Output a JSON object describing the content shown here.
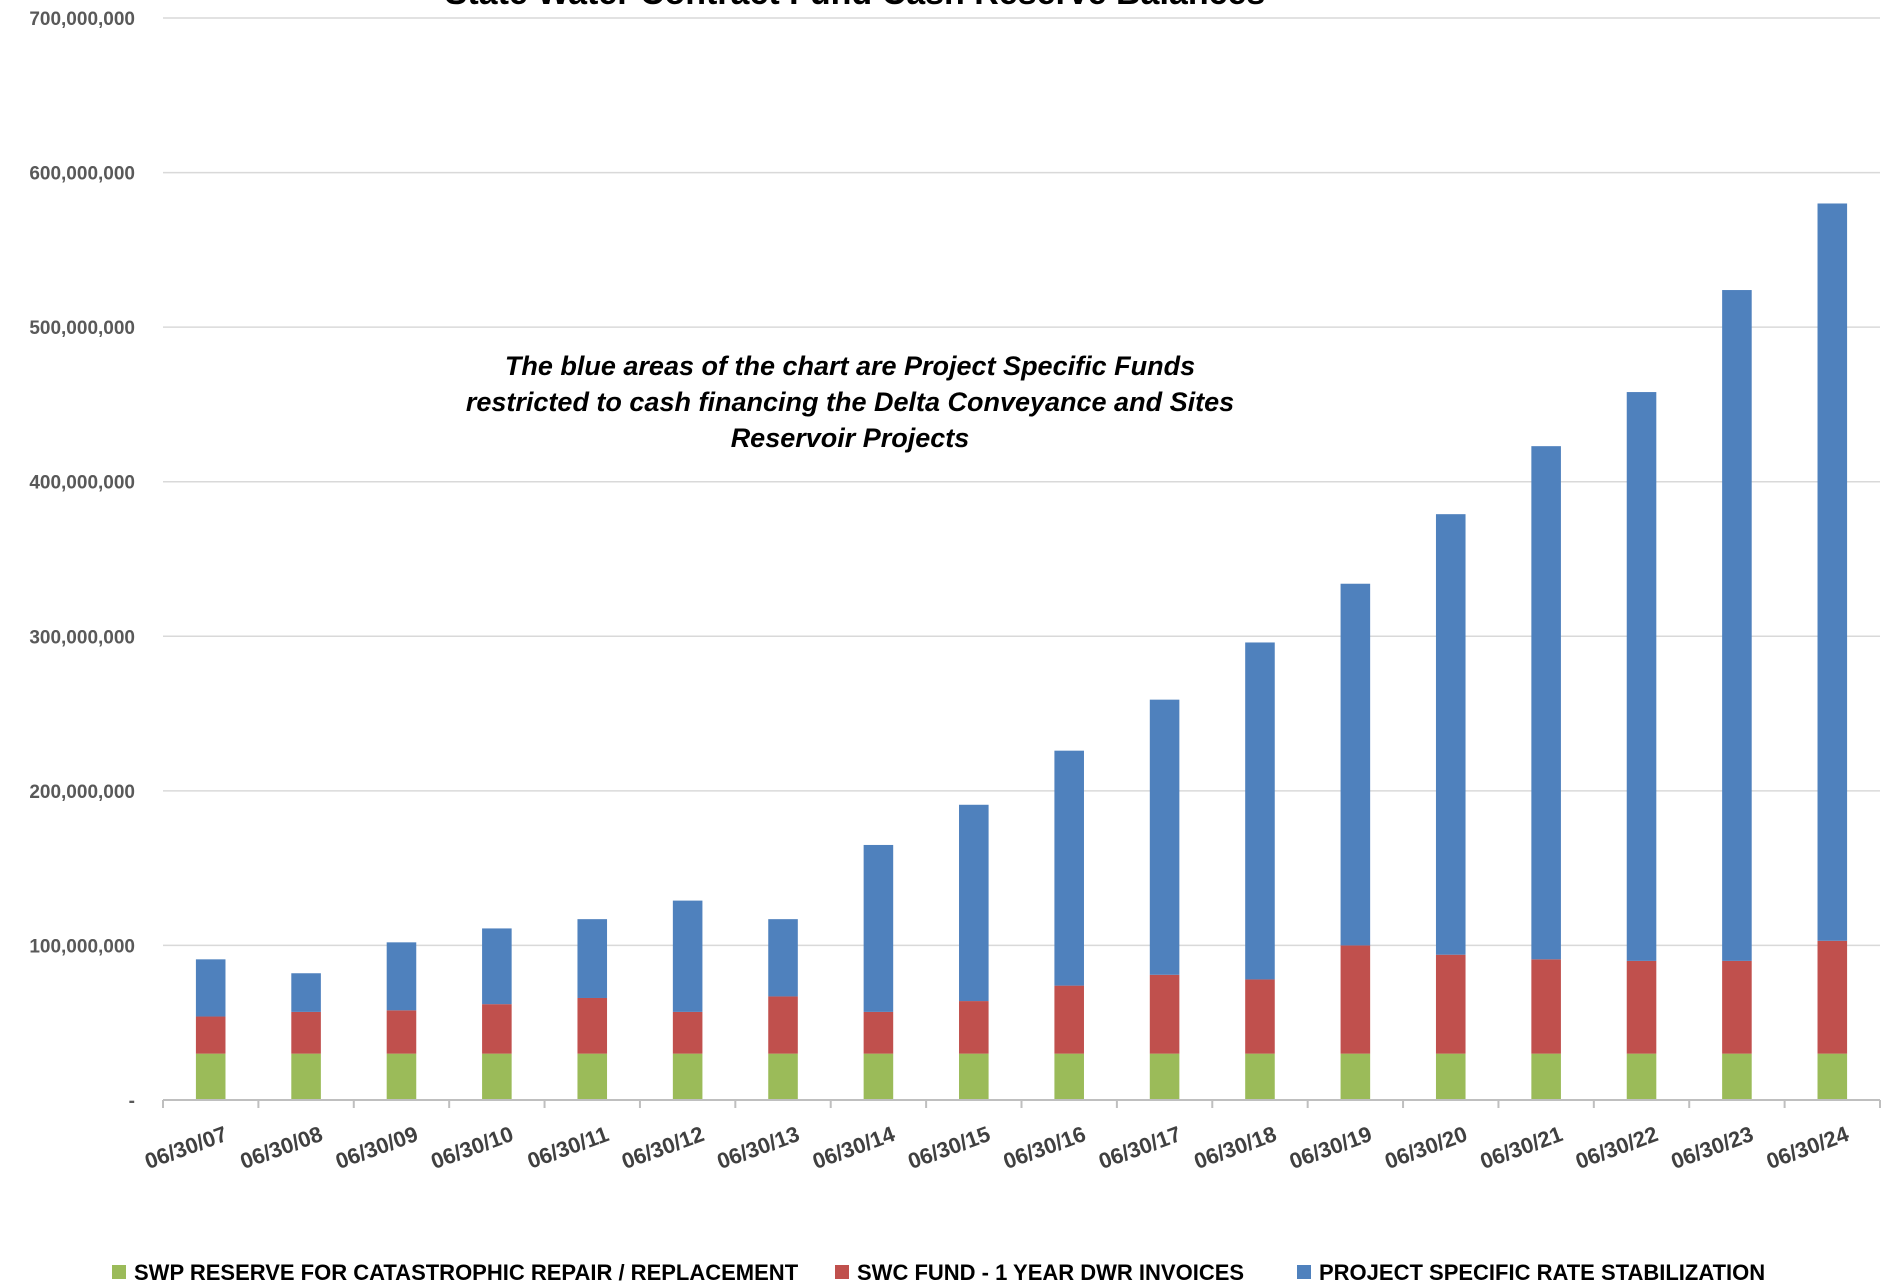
{
  "chart_data": {
    "type": "bar",
    "stacked": true,
    "title": "State Water Contract Fund Cash Reserve Balances",
    "annotation": [
      "The blue areas of the chart are Project Specific Funds",
      "restricted to cash financing the Delta Conveyance and Sites",
      "Reservoir Projects"
    ],
    "ylim": [
      0,
      700000000
    ],
    "yticks": [
      0,
      100000000,
      200000000,
      300000000,
      400000000,
      500000000,
      600000000,
      700000000
    ],
    "ytick_labels": [
      "-",
      "100,000,000",
      "200,000,000",
      "300,000,000",
      "400,000,000",
      "500,000,000",
      "600,000,000",
      "700,000,000"
    ],
    "grid": true,
    "legend_position": "bottom",
    "categories": [
      "06/30/07",
      "06/30/08",
      "06/30/09",
      "06/30/10",
      "06/30/11",
      "06/30/12",
      "06/30/13",
      "06/30/14",
      "06/30/15",
      "06/30/16",
      "06/30/17",
      "06/30/18",
      "06/30/19",
      "06/30/20",
      "06/30/21",
      "06/30/22",
      "06/30/23",
      "06/30/24"
    ],
    "series": [
      {
        "name": "SWP RESERVE FOR CATASTROPHIC REPAIR / REPLACEMENT",
        "color": "#9BBB59",
        "values": [
          30000000,
          30000000,
          30000000,
          30000000,
          30000000,
          30000000,
          30000000,
          30000000,
          30000000,
          30000000,
          30000000,
          30000000,
          30000000,
          30000000,
          30000000,
          30000000,
          30000000,
          30000000
        ]
      },
      {
        "name": "SWC FUND - 1 YEAR DWR INVOICES",
        "color": "#C0504D",
        "values": [
          24000000,
          27000000,
          28000000,
          32000000,
          36000000,
          27000000,
          37000000,
          27000000,
          34000000,
          44000000,
          51000000,
          48000000,
          70000000,
          64000000,
          61000000,
          60000000,
          60000000,
          73000000
        ]
      },
      {
        "name": "PROJECT SPECIFIC RATE STABILIZATION",
        "color": "#4F81BD",
        "values": [
          37000000,
          25000000,
          44000000,
          49000000,
          51000000,
          72000000,
          50000000,
          108000000,
          127000000,
          152000000,
          178000000,
          218000000,
          234000000,
          285000000,
          332000000,
          368000000,
          434000000,
          477000000
        ]
      }
    ]
  }
}
